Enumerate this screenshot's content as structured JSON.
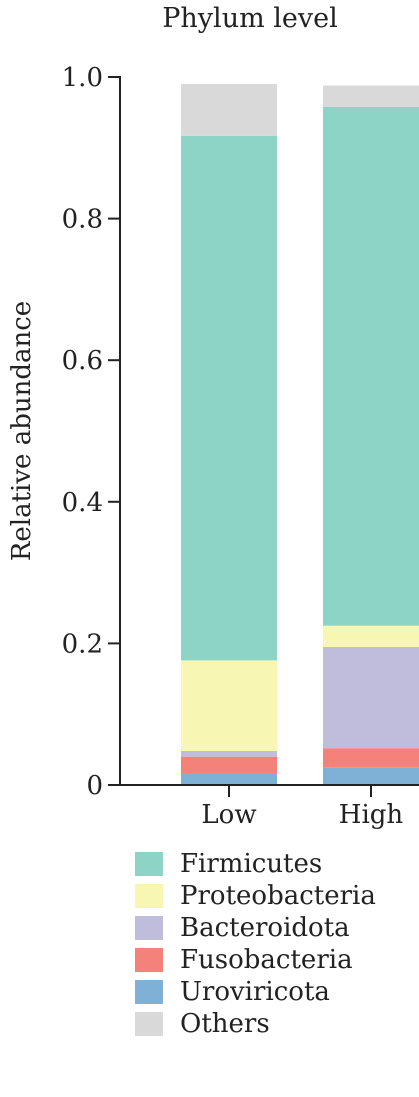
{
  "chart_data": {
    "type": "bar",
    "stacked": true,
    "title": "Phylum level",
    "xlabel": "",
    "ylabel": "Relative abundance",
    "ylim": [
      0,
      1.0
    ],
    "yticks": [
      0,
      0.2,
      0.4,
      0.6,
      0.8,
      1.0
    ],
    "ytick_labels": [
      "0",
      "0.2",
      "0.4",
      "0.6",
      "0.8",
      "1.0"
    ],
    "categories": [
      "Low",
      "High"
    ],
    "grid": false,
    "legend_position": "bottom",
    "series": [
      {
        "name": "Uroviricota",
        "color": "#7fb1d6",
        "values": [
          0.017,
          0.025
        ]
      },
      {
        "name": "Fusobacteria",
        "color": "#f5827a",
        "values": [
          0.023,
          0.027
        ]
      },
      {
        "name": "Bacteroidota",
        "color": "#c0bcdc",
        "values": [
          0.008,
          0.143
        ]
      },
      {
        "name": "Proteobacteria",
        "color": "#f8f6b3",
        "values": [
          0.128,
          0.03
        ]
      },
      {
        "name": "Firmicutes",
        "color": "#8dd4c6",
        "values": [
          0.741,
          0.733
        ]
      },
      {
        "name": "Others",
        "color": "#d9d9d9",
        "values": [
          0.073,
          0.03
        ]
      }
    ]
  },
  "legend": {
    "items": [
      {
        "label": "Firmicutes",
        "color": "#8dd4c6"
      },
      {
        "label": "Proteobacteria",
        "color": "#f8f6b3"
      },
      {
        "label": "Bacteroidota",
        "color": "#c0bcdc"
      },
      {
        "label": "Fusobacteria",
        "color": "#f5827a"
      },
      {
        "label": "Uroviricota",
        "color": "#7fb1d6"
      },
      {
        "label": "Others",
        "color": "#d9d9d9"
      }
    ]
  }
}
